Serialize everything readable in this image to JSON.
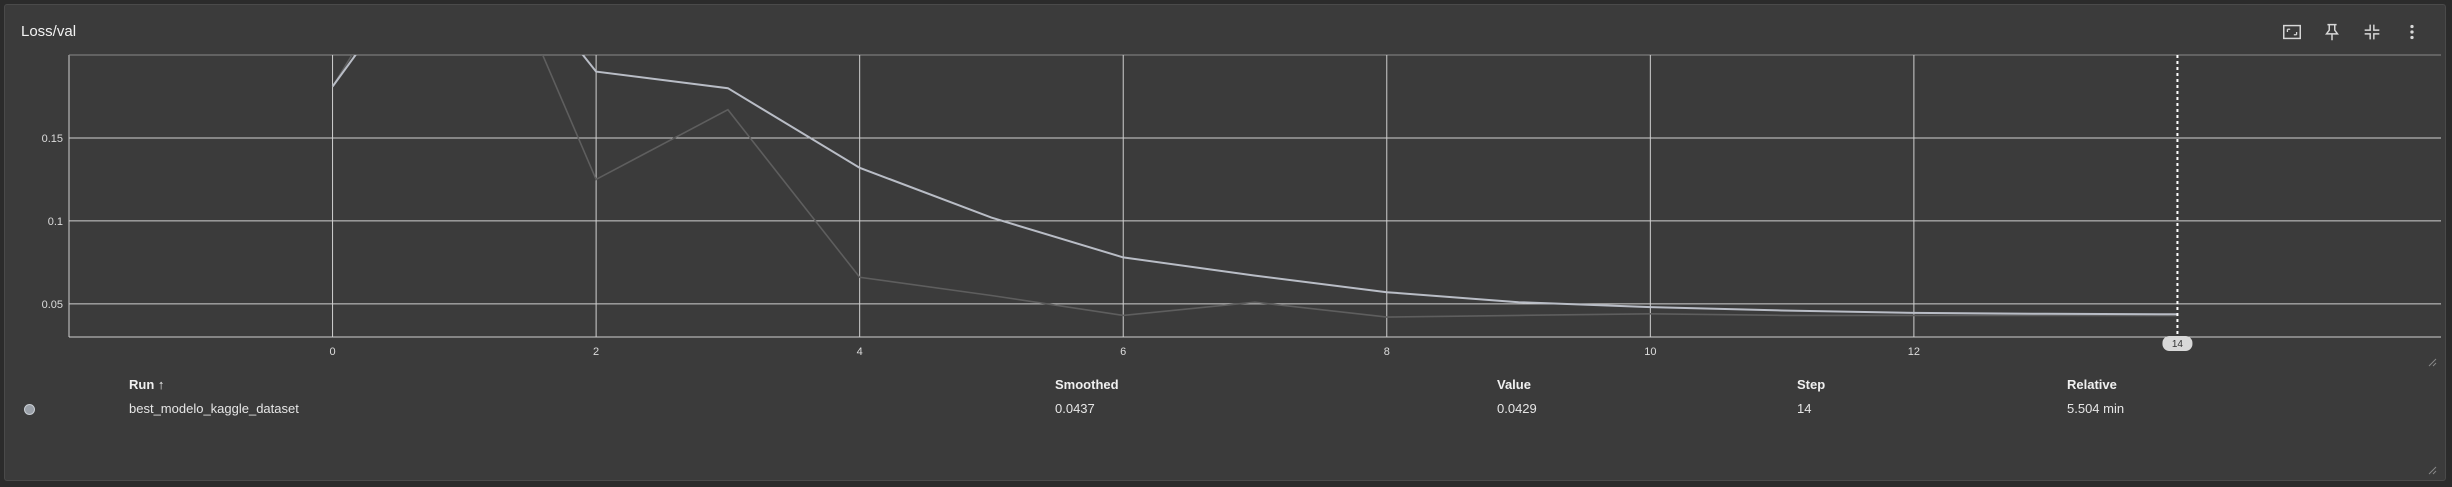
{
  "card": {
    "title": "Loss/val",
    "tools": [
      {
        "name": "fit-domain-icon"
      },
      {
        "name": "pin-icon"
      },
      {
        "name": "collapse-icon"
      },
      {
        "name": "more-vert-icon"
      }
    ]
  },
  "chart_data": {
    "type": "line",
    "title": "Loss/val",
    "xlabel": "",
    "ylabel": "",
    "xlim": [
      -2,
      16
    ],
    "ylim": [
      0.03,
      0.2
    ],
    "x_ticks": [
      0,
      2,
      4,
      6,
      8,
      10,
      12
    ],
    "y_ticks": [
      0.05,
      0.1,
      0.15
    ],
    "y_tick_labels": [
      "0.05",
      "0.1",
      "0.15"
    ],
    "grid": true,
    "hover_step_label": "14",
    "series": [
      {
        "name": "best_modelo_kaggle_dataset",
        "kind": "raw",
        "color": "#5e5e5e",
        "x": [
          0,
          1,
          2,
          3,
          4,
          5,
          6,
          7,
          8,
          9,
          10,
          11,
          12,
          13,
          14
        ],
        "y": [
          0.181,
          0.31,
          0.125,
          0.167,
          0.066,
          0.055,
          0.043,
          0.051,
          0.042,
          0.043,
          0.044,
          0.043,
          0.043,
          0.043,
          0.0429
        ]
      },
      {
        "name": "best_modelo_kaggle_dataset",
        "kind": "smoothed",
        "color": "#b9bdc6",
        "x": [
          0,
          1,
          2,
          3,
          4,
          5,
          6,
          7,
          8,
          9,
          10,
          11,
          12,
          13,
          14
        ],
        "y": [
          0.181,
          0.29,
          0.19,
          0.18,
          0.132,
          0.102,
          0.078,
          0.067,
          0.057,
          0.051,
          0.048,
          0.046,
          0.0445,
          0.044,
          0.0437
        ]
      }
    ]
  },
  "table": {
    "headers": {
      "run": "Run ↑",
      "smoothed": "Smoothed",
      "value": "Value",
      "step": "Step",
      "relative": "Relative"
    },
    "rows": [
      {
        "run": "best_modelo_kaggle_dataset",
        "smoothed": "0.0437",
        "value": "0.0429",
        "step": "14",
        "relative": "5.504 min",
        "color": "#9aa0a8"
      }
    ]
  }
}
